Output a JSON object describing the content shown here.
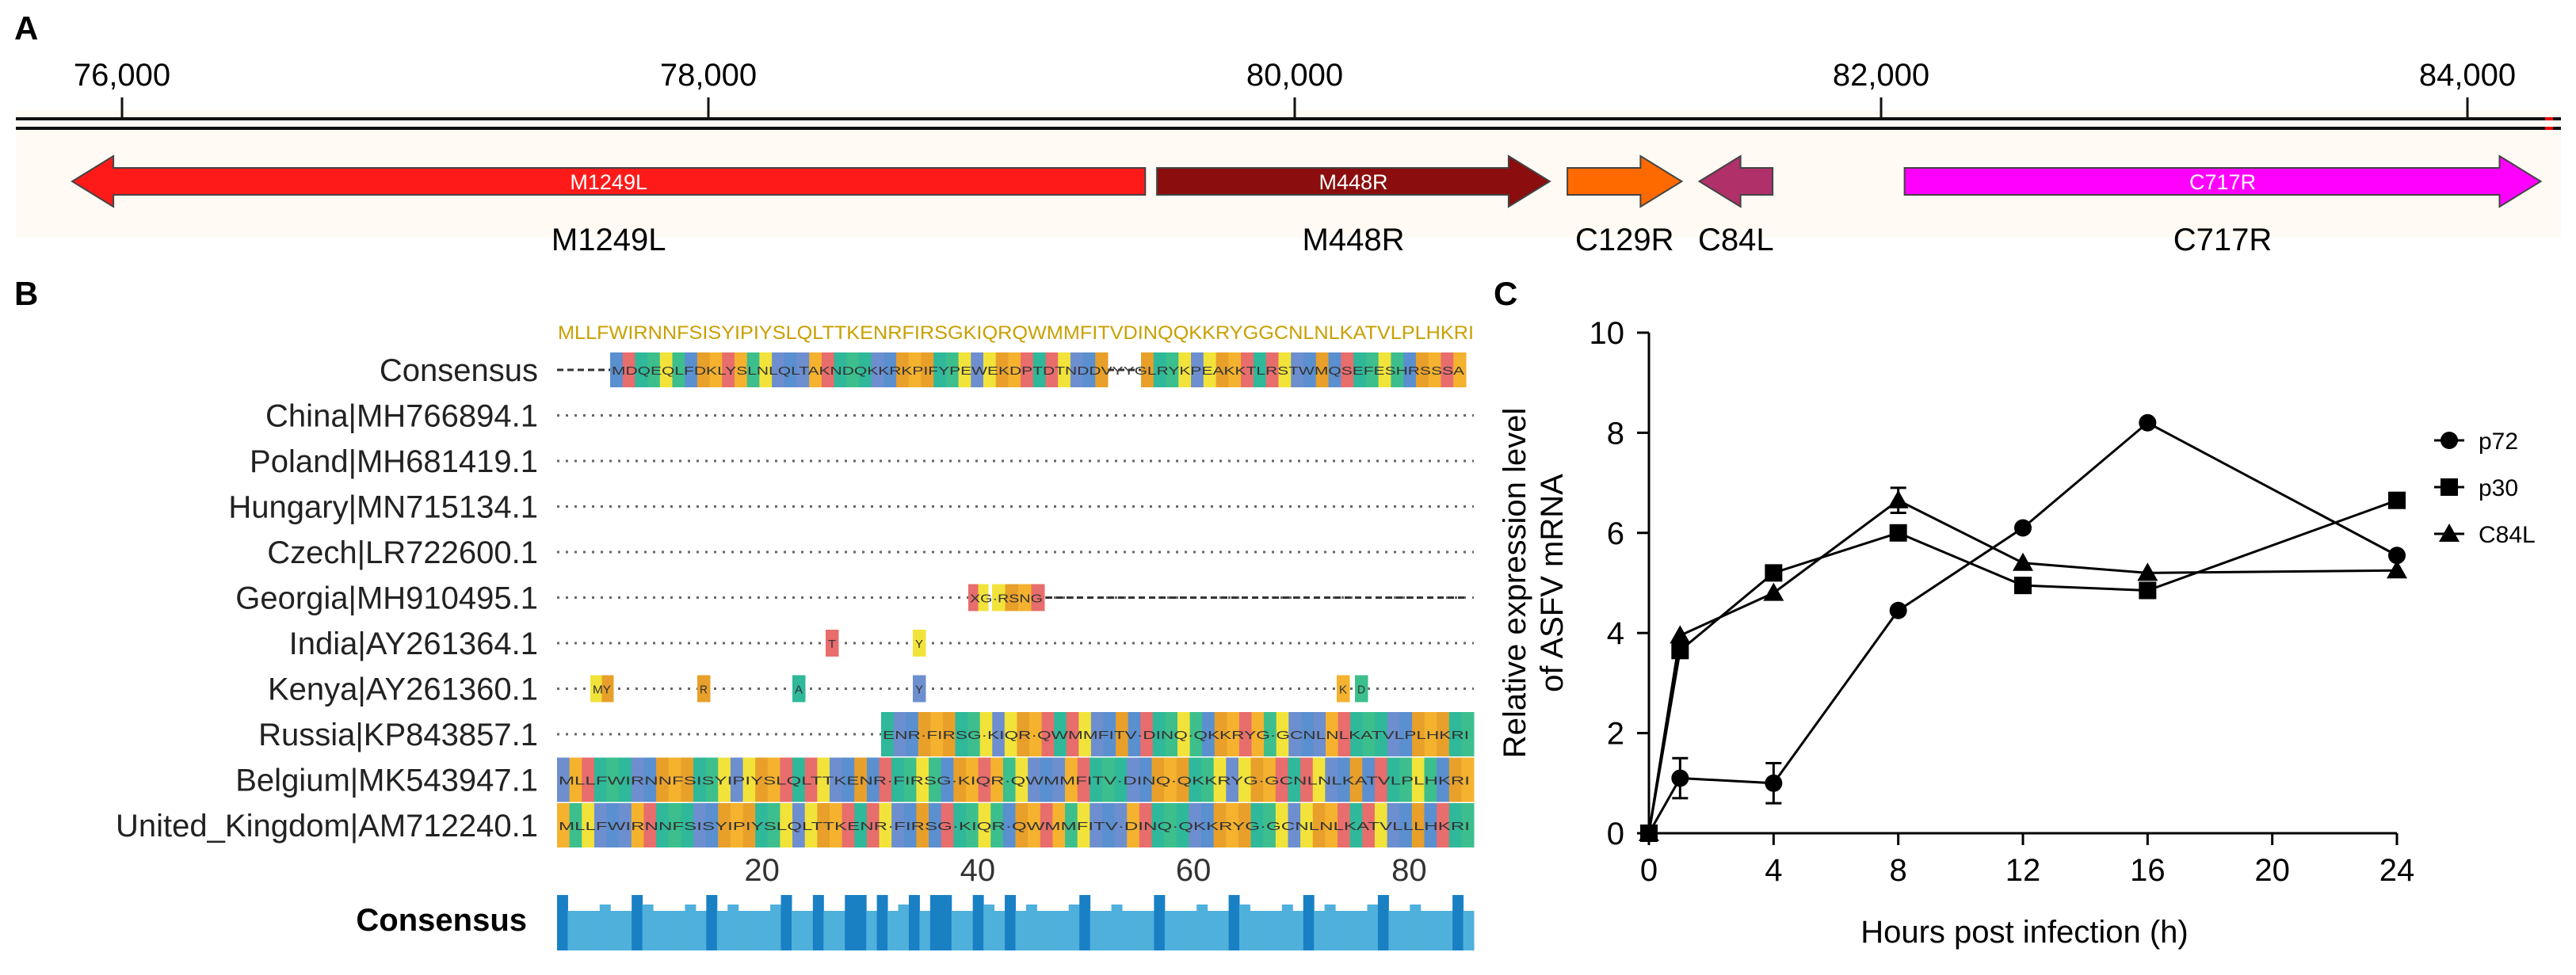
{
  "panels": {
    "a": {
      "label": "A",
      "scale_ticks": [
        "76,000",
        "78,000",
        "80,000",
        "82,000",
        "84,000"
      ],
      "genes": [
        {
          "name": "M1249L",
          "start": 75830,
          "end": 79490,
          "strand": "-",
          "color": "#ff1a1a",
          "inner_label": "M1249L",
          "below_label": "M1249L"
        },
        {
          "name": "M448R",
          "start": 79530,
          "end": 80870,
          "strand": "+",
          "color": "#8b0d0d",
          "inner_label": "M448R",
          "below_label": "M448R"
        },
        {
          "name": "C129R",
          "start": 80930,
          "end": 81320,
          "strand": "+",
          "color": "#ff6a00",
          "inner_label": "",
          "below_label": "C129R"
        },
        {
          "name": "C84L",
          "start": 81380,
          "end": 81630,
          "strand": "-",
          "color": "#b0306a",
          "inner_label": "",
          "below_label": "C84L"
        },
        {
          "name": "C717R",
          "start": 82080,
          "end": 84250,
          "strand": "+",
          "color": "#ff00ff",
          "inner_label": "C717R",
          "below_label": "C717R"
        }
      ]
    },
    "b": {
      "label": "B",
      "consensus_row_label": "Consensus",
      "sequences": [
        "China|MH766894.1",
        "Poland|MH681419.1",
        "Hungary|MN715134.1",
        "Czech|LR722600.1",
        "Georgia|MH910495.1",
        "India|AY261364.1",
        "Kenya|AY261360.1",
        "Russia|KP843857.1",
        "Belgium|MK543947.1",
        "United_Kingdom|AM712240.1"
      ],
      "position_ticks": [
        "20",
        "40",
        "60",
        "80"
      ],
      "conservation_label": "Consensus",
      "logo_text": "MLLFWIRNNFSISYIPIYSLQLTTKENRFIRSGKIQRQWMMFITVDINQQKKRYGGCNLNLKATVLPLHKRI",
      "consensus_seq": "MDQEQLFDKLYSLNLQLTAKNDQKKRKPIFYPEWEKDPTDTNDDVYYGLRYKPEAKKTLRSTWMQSEFESHRSSSA",
      "russia_seq": "ENR·FIRSG·KIQR·QWMMFITV·DINQ·QKKRYG·GCNLNLKATVLPLHKRI",
      "belgium_seq": "MLLFWIRNNFSISYIPIYSLQLTTKENR·FIRSG·KIQR·QWMMFITV·DINQ·QKKRYG·GCNLNLKATVLPLHKRI",
      "uk_seq": "MLLFWIRNNFSISYIPIYSLQLTTKENR·FIRSG·KIQR·QWMMFITV·DINQ·QKKRYG·GCNLNLKATVLLLHKRI",
      "georgia_fragment": "XG·RSNG",
      "india_fragments": [
        "T",
        "Y"
      ],
      "kenya_fragments": [
        "MY",
        "R",
        "A",
        "Y",
        "K",
        "D"
      ]
    },
    "c": {
      "label": "C",
      "legend": [
        "p72",
        "p30",
        "C84L"
      ]
    }
  },
  "chart_data": {
    "type": "line",
    "title": "",
    "xlabel": "Hours post infection (h)",
    "ylabel_line1": "Relative expression level",
    "ylabel_line2": "of ASFV mRNA",
    "xlim": [
      0,
      24
    ],
    "ylim": [
      0,
      10
    ],
    "xticks": [
      0,
      4,
      8,
      12,
      16,
      20,
      24
    ],
    "yticks": [
      0,
      2,
      4,
      6,
      8,
      10
    ],
    "x": [
      0,
      1,
      4,
      8,
      12,
      16,
      24
    ],
    "series": [
      {
        "name": "p72",
        "marker": "circle",
        "values": [
          0,
          1.1,
          1.0,
          4.45,
          6.1,
          8.2,
          5.55
        ],
        "errors": [
          0,
          0.4,
          0.4,
          0,
          0,
          0,
          0
        ]
      },
      {
        "name": "p30",
        "marker": "square",
        "values": [
          0,
          3.65,
          5.2,
          6.0,
          4.95,
          4.85,
          6.65
        ],
        "errors": [
          0,
          0,
          0,
          0,
          0,
          0,
          0
        ]
      },
      {
        "name": "C84L",
        "marker": "triangle",
        "values": [
          0,
          3.95,
          4.8,
          6.65,
          5.4,
          5.2,
          5.25
        ],
        "errors": [
          0,
          0,
          0,
          0.25,
          0,
          0,
          0
        ]
      }
    ]
  }
}
